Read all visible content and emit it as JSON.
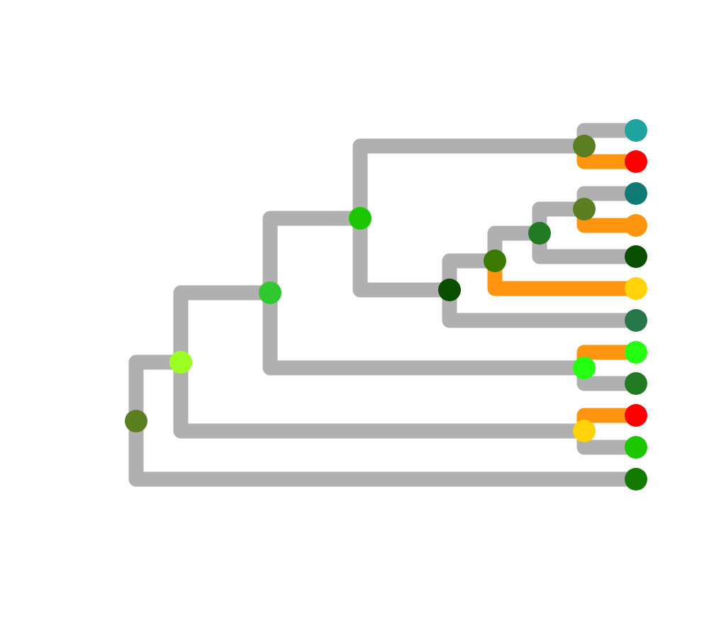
{
  "tree": {
    "branch_colors": {
      "grey": "#b0b0b0",
      "orange": "#ff950e"
    },
    "nodes": {
      "tip-1": {
        "color": "#20a39e"
      },
      "tip-2": {
        "color": "#ff0000"
      },
      "tip-3": {
        "color": "#0f7a76"
      },
      "tip-4": {
        "color": "#ff950e"
      },
      "tip-5": {
        "color": "#0a4f00"
      },
      "tip-6": {
        "color": "#ffd20a"
      },
      "tip-7": {
        "color": "#26774a"
      },
      "tip-8": {
        "color": "#24ff12"
      },
      "tip-9": {
        "color": "#227a22"
      },
      "tip-10": {
        "color": "#ff0000"
      },
      "tip-11": {
        "color": "#1bc800"
      },
      "tip-12": {
        "color": "#137c00"
      },
      "node-root": {
        "color": "#5b7f20"
      },
      "node-a": {
        "color": "#9bff24"
      },
      "node-b": {
        "color": "#2fc82f"
      },
      "node-c": {
        "color": "#1bc800"
      },
      "node-d": {
        "color": "#5b7f20"
      },
      "node-e": {
        "color": "#0a4f00"
      },
      "node-f": {
        "color": "#3a7a00"
      },
      "node-g": {
        "color": "#227a22"
      },
      "node-h": {
        "color": "#5b7f20"
      },
      "node-i": {
        "color": "#24ff12"
      },
      "node-j": {
        "color": "#ffd20a"
      }
    },
    "edges": [
      {
        "parent": "node-root",
        "child": "node-a",
        "state": "grey"
      },
      {
        "parent": "node-root",
        "child": "tip-12",
        "state": "grey"
      },
      {
        "parent": "node-a",
        "child": "node-b",
        "state": "grey"
      },
      {
        "parent": "node-a",
        "child": "node-j",
        "state": "grey"
      },
      {
        "parent": "node-b",
        "child": "node-c",
        "state": "grey"
      },
      {
        "parent": "node-b",
        "child": "node-i",
        "state": "grey"
      },
      {
        "parent": "node-c",
        "child": "node-d",
        "state": "grey"
      },
      {
        "parent": "node-c",
        "child": "node-e",
        "state": "grey"
      },
      {
        "parent": "node-d",
        "child": "tip-1",
        "state": "grey"
      },
      {
        "parent": "node-d",
        "child": "tip-2",
        "state": "orange"
      },
      {
        "parent": "node-e",
        "child": "node-f",
        "state": "grey"
      },
      {
        "parent": "node-e",
        "child": "tip-7",
        "state": "grey"
      },
      {
        "parent": "node-f",
        "child": "node-g",
        "state": "grey"
      },
      {
        "parent": "node-f",
        "child": "tip-6",
        "state": "orange"
      },
      {
        "parent": "node-g",
        "child": "node-h",
        "state": "grey"
      },
      {
        "parent": "node-g",
        "child": "tip-5",
        "state": "grey"
      },
      {
        "parent": "node-h",
        "child": "tip-3",
        "state": "grey"
      },
      {
        "parent": "node-h",
        "child": "tip-4",
        "state": "orange"
      },
      {
        "parent": "node-i",
        "child": "tip-8",
        "state": "orange"
      },
      {
        "parent": "node-i",
        "child": "tip-9",
        "state": "grey"
      },
      {
        "parent": "node-j",
        "child": "tip-10",
        "state": "orange"
      },
      {
        "parent": "node-j",
        "child": "tip-11",
        "state": "grey"
      }
    ]
  }
}
